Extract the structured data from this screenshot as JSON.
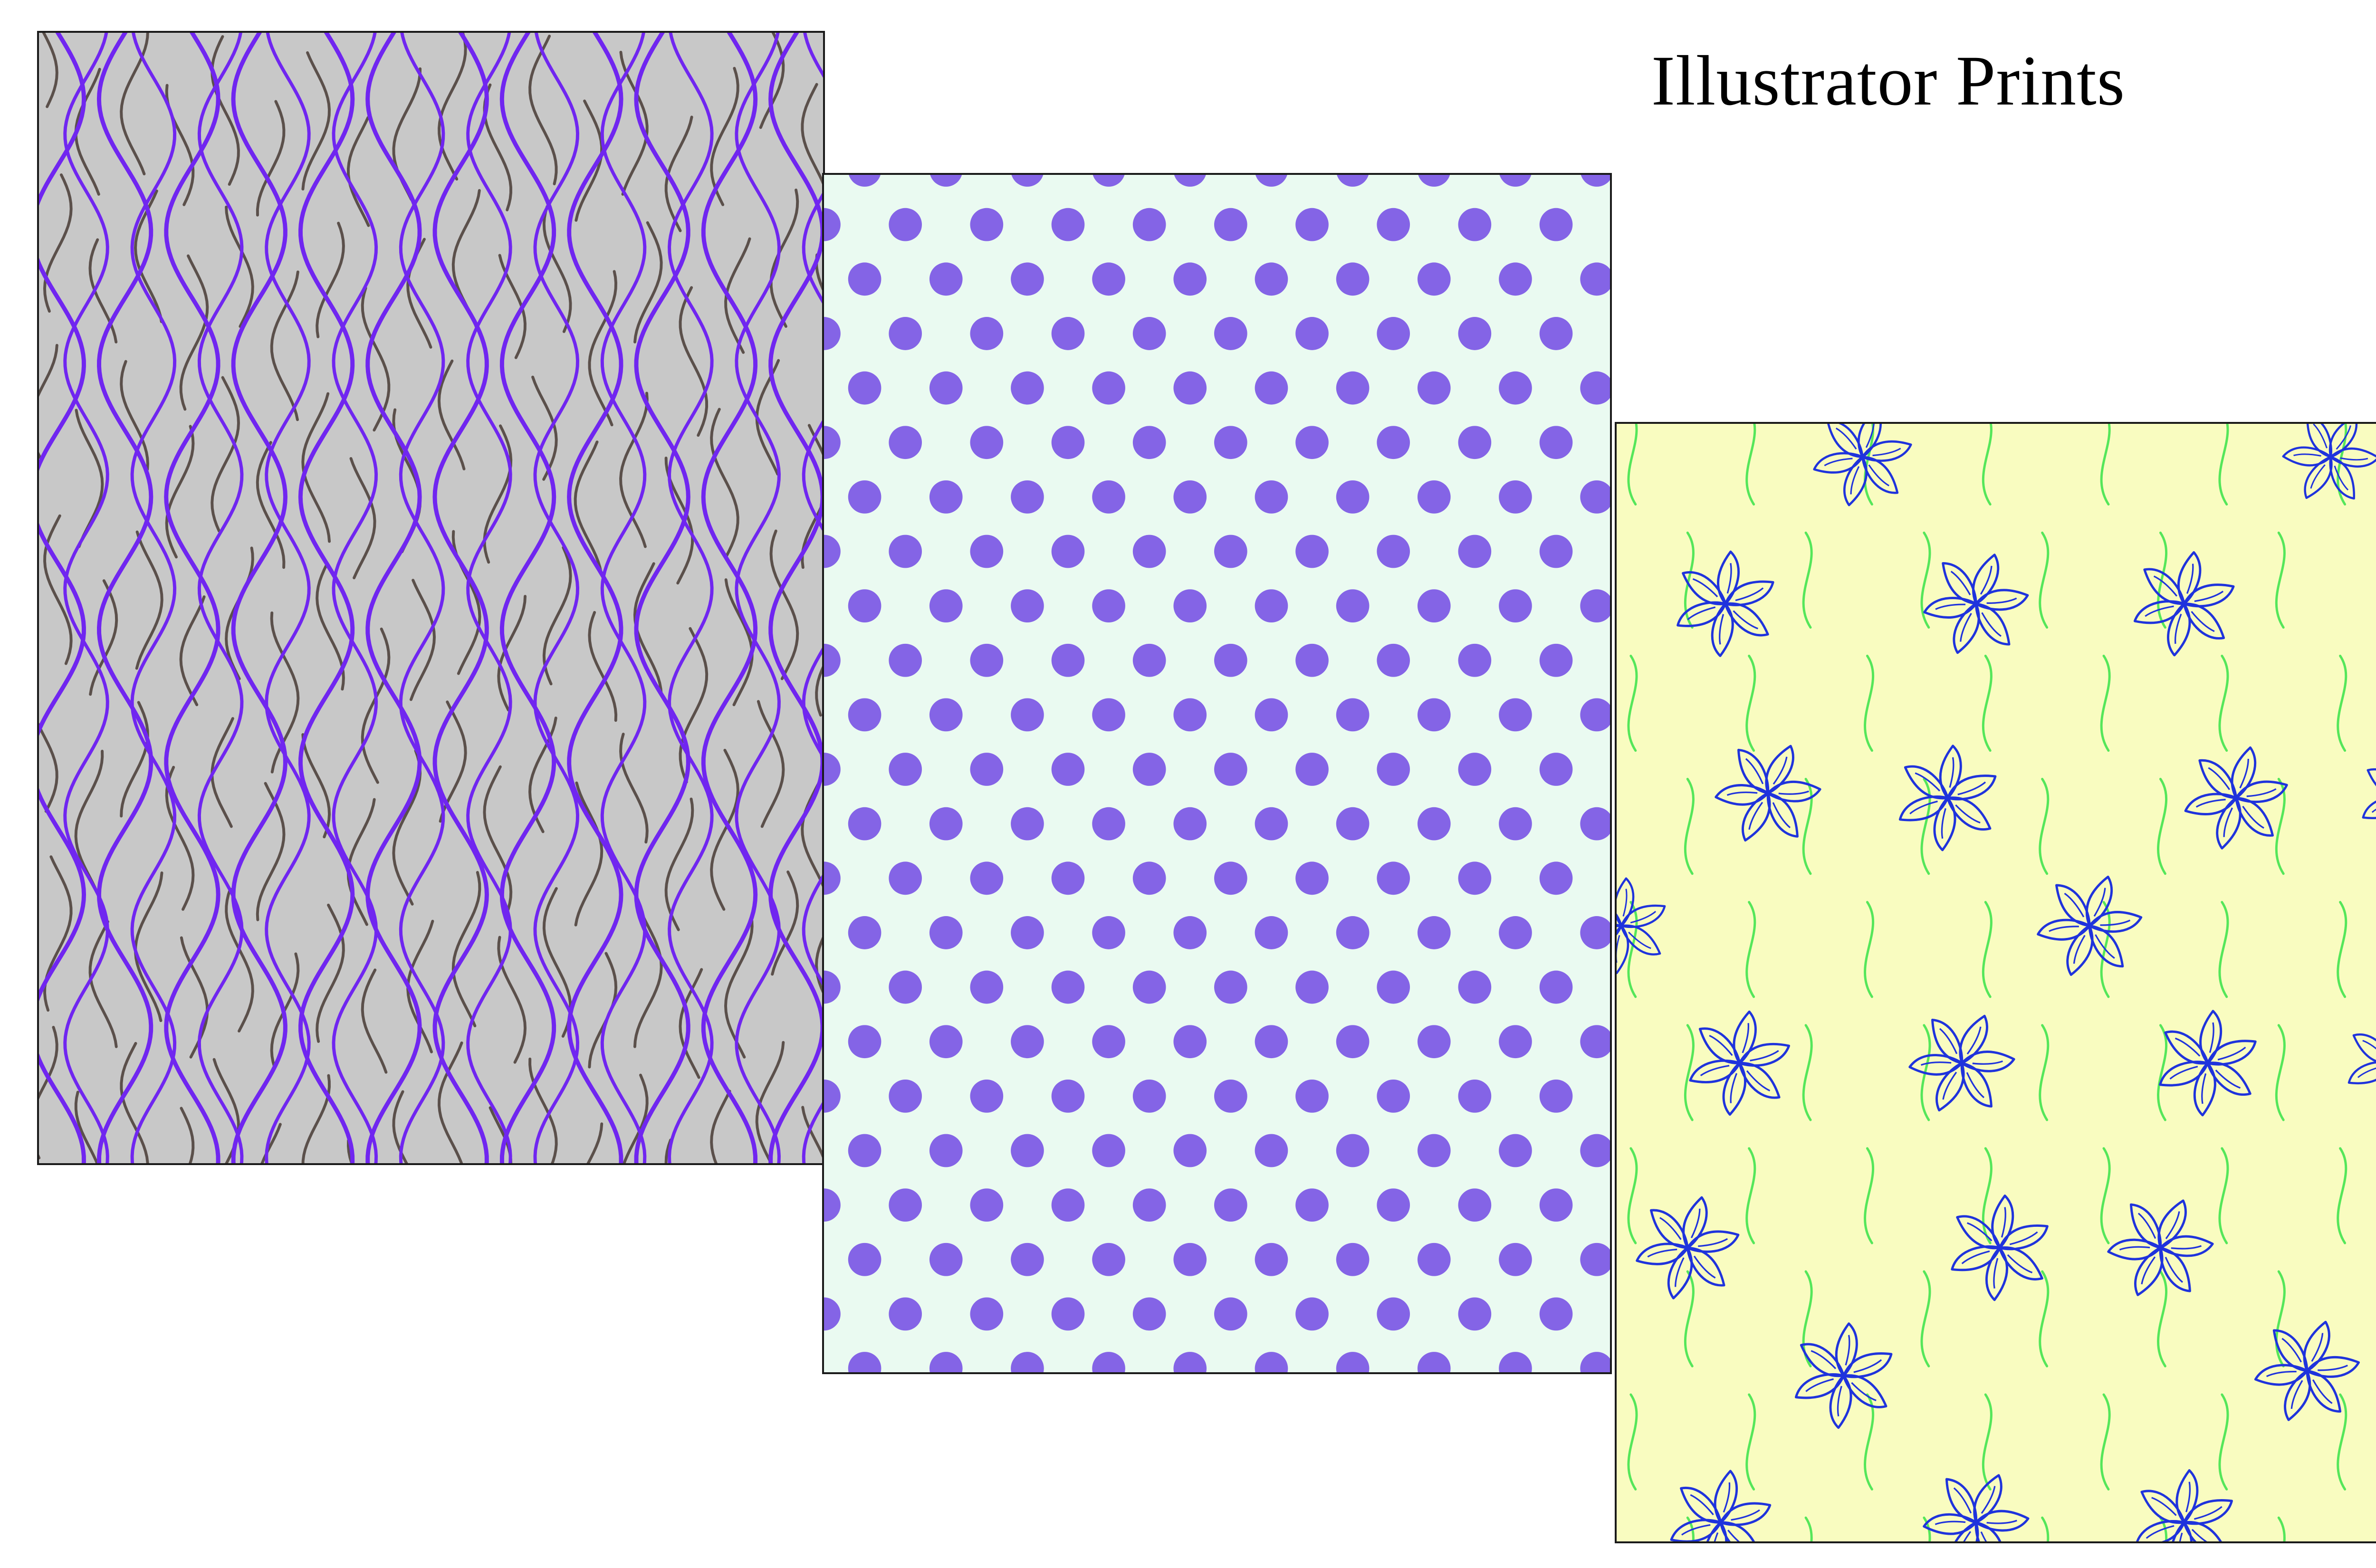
{
  "page": {
    "title": "Illustrator Prints"
  },
  "prints": [
    {
      "pattern": "wavy-lines",
      "colors": {
        "background": "#c8c8c8",
        "primary": "#7026f0",
        "secondary": "#5b504b"
      }
    },
    {
      "pattern": "polka-dots",
      "colors": {
        "background": "#eafaf1",
        "dot": "#8464e6"
      }
    },
    {
      "pattern": "floral",
      "colors": {
        "background": "#f9fcc0",
        "flower": "#1f33dc",
        "stem": "#55e65a"
      }
    }
  ]
}
